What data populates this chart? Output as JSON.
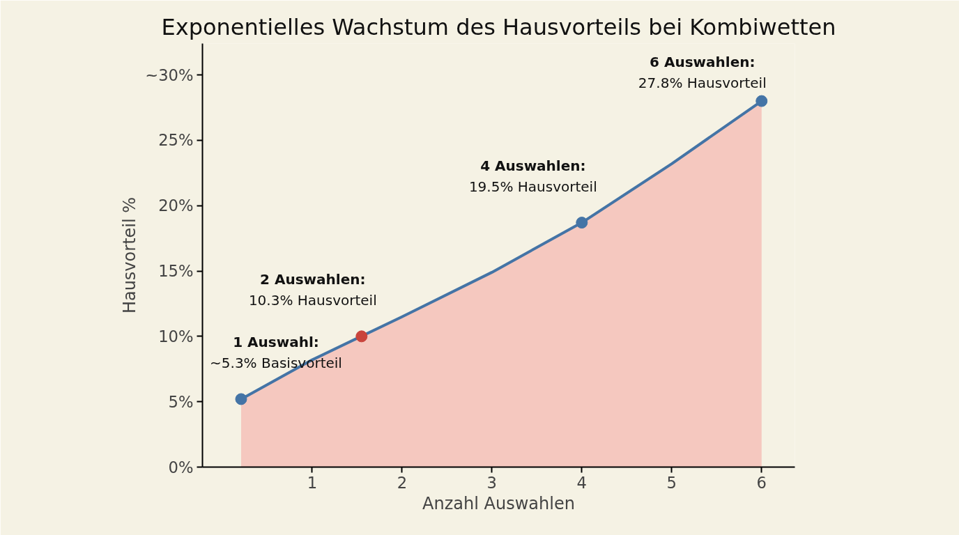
{
  "chart_data": {
    "type": "line",
    "title": "Exponentielles Wachstum des Hausvorteils bei Kombiwetten",
    "xlabel": "Anzahl Auswahlen",
    "ylabel": "Hausvorteil %",
    "xlim": [
      -0.22,
      6.37
    ],
    "xticks": [
      1,
      2,
      3,
      4,
      5,
      6
    ],
    "ylim": [
      0,
      32.4
    ],
    "yticks": [
      {
        "value": 0,
        "label": "0%"
      },
      {
        "value": 5,
        "label": "5%"
      },
      {
        "value": 10,
        "label": "10%"
      },
      {
        "value": 15,
        "label": "15%"
      },
      {
        "value": 20,
        "label": "20%"
      },
      {
        "value": 25,
        "label": "25%"
      },
      {
        "value": 30,
        "label": "~30%"
      }
    ],
    "grid": false,
    "series": [
      {
        "type": "area",
        "color": "#f5c8bf",
        "x": [
          0.21,
          1,
          2,
          3,
          4,
          5,
          6
        ],
        "values": [
          5.2,
          8.2,
          11.5,
          14.9,
          18.7,
          23.2,
          28.0
        ]
      },
      {
        "color": "#4474a6",
        "x": [
          0.21,
          1,
          2,
          3,
          4,
          5,
          6
        ],
        "values": [
          5.2,
          8.2,
          11.5,
          14.9,
          18.7,
          23.2,
          28.0
        ]
      },
      {
        "type": "scatter",
        "marker": "circle",
        "colors": [
          "#4474a6",
          "#c9443c",
          "#4474a6",
          "#4474a6"
        ],
        "x": [
          0.21,
          1.55,
          4,
          6
        ],
        "values": [
          5.2,
          10.0,
          18.7,
          28.0
        ]
      }
    ],
    "annotations": [
      {
        "text": "1 Auswahl:\n~5.3% Basisvorteil",
        "x": 0.21,
        "y": 5.2
      },
      {
        "text": "2 Auswahlen:\n10.3% Hausvorteil",
        "x": 1.55,
        "y": 10.0
      },
      {
        "text": "4 Auswahlen:\n19.5% Hausvorteil",
        "x": 4,
        "y": 18.7
      },
      {
        "text": "6 Auswahlen:\n27.8% Hausvorteil",
        "x": 6,
        "y": 28.0
      }
    ]
  }
}
